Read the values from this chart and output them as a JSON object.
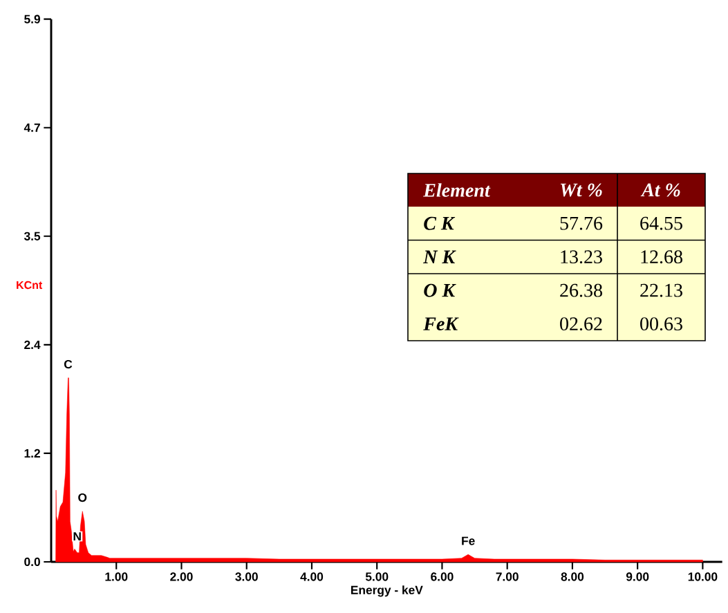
{
  "chart_data": {
    "type": "area",
    "xlabel": "Energy - keV",
    "ylabel": "KCnt",
    "xlim": [
      0,
      10.3
    ],
    "ylim": [
      0,
      5.9
    ],
    "xticks": [
      {
        "value": 1,
        "label": "1.00"
      },
      {
        "value": 2,
        "label": "2.00"
      },
      {
        "value": 3,
        "label": "3.00"
      },
      {
        "value": 4,
        "label": "4.00"
      },
      {
        "value": 5,
        "label": "5.00"
      },
      {
        "value": 6,
        "label": "6.00"
      },
      {
        "value": 7,
        "label": "7.00"
      },
      {
        "value": 8,
        "label": "8.00"
      },
      {
        "value": 9,
        "label": "9.00"
      },
      {
        "value": 10,
        "label": "10.00"
      }
    ],
    "yticks": [
      {
        "value": 0,
        "label": "0.0"
      },
      {
        "value": 1.18,
        "label": "1.2"
      },
      {
        "value": 2.36,
        "label": "2.4"
      },
      {
        "value": 3.54,
        "label": "3.5"
      },
      {
        "value": 4.72,
        "label": "4.7"
      },
      {
        "value": 5.9,
        "label": "5.9"
      }
    ],
    "x": [
      0.07,
      0.075,
      0.08,
      0.1,
      0.14,
      0.18,
      0.22,
      0.24,
      0.26,
      0.27,
      0.28,
      0.29,
      0.31,
      0.34,
      0.36,
      0.4,
      0.43,
      0.45,
      0.48,
      0.51,
      0.53,
      0.57,
      0.62,
      0.77,
      0.86,
      0.9,
      1.5,
      2.0,
      2.5,
      3.0,
      3.5,
      4.0,
      4.5,
      5.0,
      5.5,
      6.0,
      6.3,
      6.4,
      6.5,
      6.8,
      7.0,
      7.5,
      8.0,
      8.5,
      9.0,
      9.5,
      10.0
    ],
    "series": [
      {
        "color": "#ff0000",
        "values": [
          0,
          0.78,
          0.5,
          0.44,
          0.6,
          0.65,
          0.97,
          1.6,
          2.0,
          2.0,
          1.6,
          0.44,
          0.34,
          0.11,
          0.14,
          0.1,
          0.1,
          0.39,
          0.55,
          0.44,
          0.19,
          0.1,
          0.07,
          0.07,
          0.05,
          0.04,
          0.04,
          0.04,
          0.04,
          0.04,
          0.03,
          0.03,
          0.03,
          0.03,
          0.03,
          0.03,
          0.04,
          0.08,
          0.04,
          0.03,
          0.03,
          0.03,
          0.03,
          0.02,
          0.02,
          0.02,
          0.02
        ]
      }
    ],
    "annotations": [
      {
        "text": "C",
        "x": 0.26,
        "y": 2.0
      },
      {
        "text": "N",
        "x": 0.4,
        "y": 0.1
      },
      {
        "text": "O",
        "x": 0.48,
        "y": 0.55
      },
      {
        "text": "Fe",
        "x": 6.4,
        "y": 0.08
      },
      "Element",
      "Wt %",
      "At %",
      "C K",
      "57.76",
      "64.55",
      "N K",
      "13.23",
      "12.68",
      "O K",
      "26.38",
      "22.13",
      "FeK",
      "02.62",
      "00.63"
    ]
  }
}
